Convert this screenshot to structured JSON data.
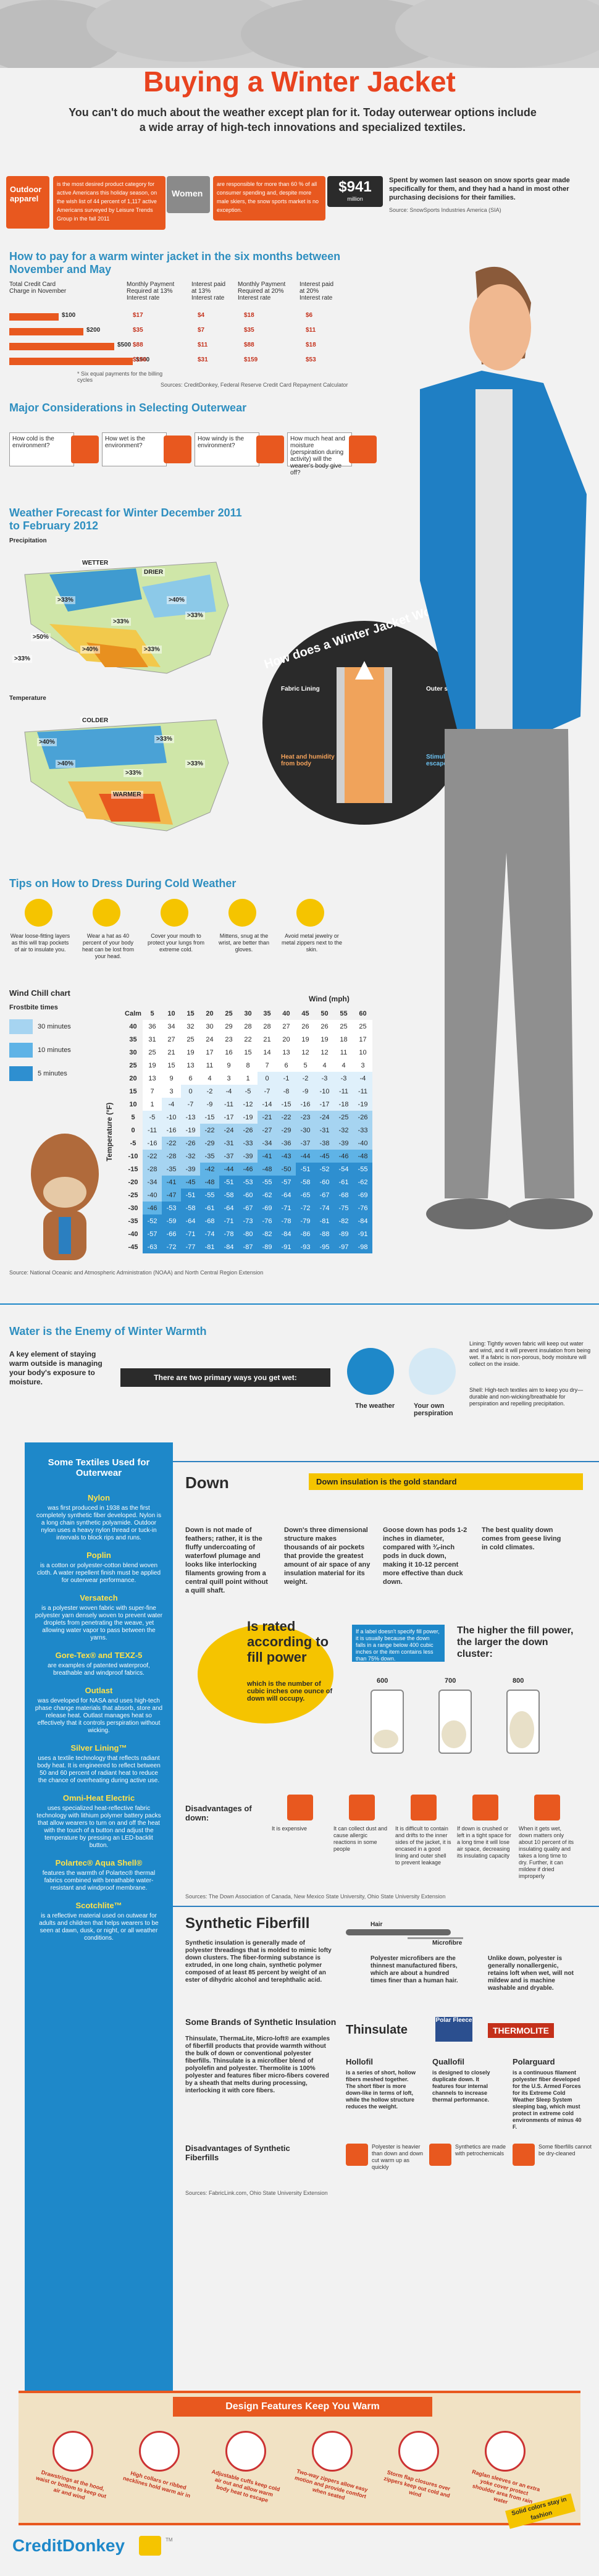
{
  "header": {
    "title": "Buying a Winter Jacket",
    "intro": "You can't do much about the weather except plan for it. Today outerwear options include a wide array of high-tech innovations and specialized textiles."
  },
  "stats": {
    "outdoor_label": "Outdoor apparel",
    "outdoor_text": "is the most desired product category for active Americans this holiday season, on the wish list of 44 percent of 1,117 active Americans surveyed by Leisure Trends Group in the fall 2011",
    "women_label": "Women",
    "women_text": "are responsible for more than 60 % of all consumer spending and, despite more male skiers, the snow sports market is no exception.",
    "spent_value": "$941",
    "spent_unit": "million",
    "spent_text": "Spent by women last season on snow sports gear made specifically for them, and they had a hand in most other purchasing decisions for their families.",
    "spent_source": "Source: SnowSports Industries America (SIA)"
  },
  "payment": {
    "title": "How to pay for a warm winter jacket in the six months between November and May",
    "col1": "Total Credit Card Charge in November",
    "col2": "Monthly Payment Required at 13% Interest rate",
    "col3": "Interest paid at 13% Interest rate",
    "col4": "Monthly Payment Required at 20% Interest rate",
    "col5": "Interest paid at 20% Interest rate",
    "rows": [
      {
        "charge": "$100",
        "p13": "$17",
        "i13": "$4",
        "p20": "$18",
        "i20": "$6"
      },
      {
        "charge": "$200",
        "p13": "$35",
        "i13": "$7",
        "p20": "$35",
        "i20": "$11"
      },
      {
        "charge": "$500",
        "p13": "$88",
        "i13": "$11",
        "p20": "$88",
        "i20": "$18"
      },
      {
        "charge": "$900",
        "p13": "$156",
        "i13": "$31",
        "p20": "$159",
        "i20": "$53"
      }
    ],
    "note": "* Six equal payments for the billing cycles",
    "source": "Sources: CreditDonkey, Federal Reserve Credit Card Repayment Calculator"
  },
  "considerations": {
    "title": "Major Considerations in Selecting Outerwear",
    "items": [
      "How cold is the environment?",
      "How wet is the environment?",
      "How windy is the environment?",
      "How much heat and moisture (perspiration during activity) will the wearer's body give off?"
    ]
  },
  "forecast": {
    "title": "Weather Forecast for Winter December 2011 to February 2012",
    "precip_label": "Precipitation",
    "precip_tags": [
      "WETTER",
      "DRIER",
      ">40%",
      ">33%",
      ">33%",
      ">33%",
      ">40%",
      ">50%",
      ">33%",
      ">33%"
    ],
    "temp_label": "Temperature",
    "temp_tags": [
      "COLDER",
      "WARMER",
      ">33%",
      ">40%",
      ">33%",
      ">33%",
      ">40%"
    ]
  },
  "how_works": {
    "title": "How does a Winter Jacket Work?",
    "fabric": "Fabric Lining",
    "fill": "Fill",
    "outer": "Outer shell",
    "heat": "Heat and humidity from body",
    "vapor": "Stimulate vapor escapes"
  },
  "tips": {
    "title": "Tips on How to Dress During Cold Weather",
    "items": [
      "Wear loose-fitting layers as this will trap pockets of air to insulate you.",
      "Wear a hat as 40 percent of your body heat can be lost from your head.",
      "Cover your mouth to protect your lungs from extreme cold.",
      "Mittens, snug at the wrist, are better than gloves.",
      "Avoid metal jewelry or metal zippers next to the skin."
    ]
  },
  "wind_chill": {
    "title": "Wind Chill chart",
    "frostbite_label": "Frostbite times",
    "legend": [
      "30 minutes",
      "10 minutes",
      "5 minutes"
    ],
    "wind_label": "Wind (mph)",
    "temp_label": "Temperature (°F)",
    "header": [
      "Calm",
      "5",
      "10",
      "15",
      "20",
      "25",
      "30",
      "35",
      "40",
      "45",
      "50",
      "55",
      "60"
    ],
    "rows": [
      [
        "40",
        "36",
        "34",
        "32",
        "30",
        "29",
        "28",
        "28",
        "27",
        "26",
        "26",
        "25",
        "25"
      ],
      [
        "35",
        "31",
        "27",
        "25",
        "24",
        "23",
        "22",
        "21",
        "20",
        "19",
        "19",
        "18",
        "17"
      ],
      [
        "30",
        "25",
        "21",
        "19",
        "17",
        "16",
        "15",
        "14",
        "13",
        "12",
        "12",
        "11",
        "10"
      ],
      [
        "25",
        "19",
        "15",
        "13",
        "11",
        "9",
        "8",
        "7",
        "6",
        "5",
        "4",
        "4",
        "3"
      ],
      [
        "20",
        "13",
        "9",
        "6",
        "4",
        "3",
        "1",
        "0",
        "-1",
        "-2",
        "-3",
        "-3",
        "-4"
      ],
      [
        "15",
        "7",
        "3",
        "0",
        "-2",
        "-4",
        "-5",
        "-7",
        "-8",
        "-9",
        "-10",
        "-11",
        "-11"
      ],
      [
        "10",
        "1",
        "-4",
        "-7",
        "-9",
        "-11",
        "-12",
        "-14",
        "-15",
        "-16",
        "-17",
        "-18",
        "-19"
      ],
      [
        "5",
        "-5",
        "-10",
        "-13",
        "-15",
        "-17",
        "-19",
        "-21",
        "-22",
        "-23",
        "-24",
        "-25",
        "-26"
      ],
      [
        "0",
        "-11",
        "-16",
        "-19",
        "-22",
        "-24",
        "-26",
        "-27",
        "-29",
        "-30",
        "-31",
        "-32",
        "-33"
      ],
      [
        "-5",
        "-16",
        "-22",
        "-26",
        "-29",
        "-31",
        "-33",
        "-34",
        "-36",
        "-37",
        "-38",
        "-39",
        "-40"
      ],
      [
        "-10",
        "-22",
        "-28",
        "-32",
        "-35",
        "-37",
        "-39",
        "-41",
        "-43",
        "-44",
        "-45",
        "-46",
        "-48"
      ],
      [
        "-15",
        "-28",
        "-35",
        "-39",
        "-42",
        "-44",
        "-46",
        "-48",
        "-50",
        "-51",
        "-52",
        "-54",
        "-55"
      ],
      [
        "-20",
        "-34",
        "-41",
        "-45",
        "-48",
        "-51",
        "-53",
        "-55",
        "-57",
        "-58",
        "-60",
        "-61",
        "-62"
      ],
      [
        "-25",
        "-40",
        "-47",
        "-51",
        "-55",
        "-58",
        "-60",
        "-62",
        "-64",
        "-65",
        "-67",
        "-68",
        "-69"
      ],
      [
        "-30",
        "-46",
        "-53",
        "-58",
        "-61",
        "-64",
        "-67",
        "-69",
        "-71",
        "-72",
        "-74",
        "-75",
        "-76"
      ],
      [
        "-35",
        "-52",
        "-59",
        "-64",
        "-68",
        "-71",
        "-73",
        "-76",
        "-78",
        "-79",
        "-81",
        "-82",
        "-84"
      ],
      [
        "-40",
        "-57",
        "-66",
        "-71",
        "-74",
        "-78",
        "-80",
        "-82",
        "-84",
        "-86",
        "-88",
        "-89",
        "-91"
      ],
      [
        "-45",
        "-63",
        "-72",
        "-77",
        "-81",
        "-84",
        "-87",
        "-89",
        "-91",
        "-93",
        "-95",
        "-97",
        "-98"
      ]
    ],
    "source": "Source: National Oceanic and Atmospheric Administration (NOAA) and North Central Region Extension"
  },
  "water": {
    "title": "Water is the Enemy of Winter Warmth",
    "key": "A key element of staying warm outside is managing your body's exposure to moisture.",
    "ways": "There are two primary ways you get wet:",
    "way1": "The weather",
    "way2": "Your own perspiration",
    "lining": "Lining: Tightly woven fabric will keep out water and wind, and it will prevent insulation from being wet. If a fabric is non-porous, body moisture will collect on the inside.",
    "shell": "Shell: High-tech textiles aim to keep you dry—durable and non-wicking/breathable for perspiration and repelling precipitation."
  },
  "textiles": {
    "title": "Some Textiles Used for Outerwear",
    "items": [
      {
        "name": "Nylon",
        "text": "was first produced in 1938 as the first completely synthetic fiber developed. Nylon is a long chain synthetic polyamide. Outdoor nylon uses a heavy nylon thread or tuck-in intervals to block rips and runs."
      },
      {
        "name": "Poplin",
        "text": "is a cotton or polyester-cotton blend woven cloth. A water repellent finish must be applied for outerwear performance."
      },
      {
        "name": "Versatech",
        "text": "is a polyester woven fabric with super-fine polyester yarn densely woven to prevent water droplets from penetrating the weave, yet allowing water vapor to pass between the yarns."
      },
      {
        "name": "Gore-Tex® and TEXZ-5",
        "text": "are examples of patented waterproof, breathable and windproof fabrics."
      },
      {
        "name": "Outlast",
        "text": "was developed for NASA and uses high-tech phase change materials that absorb, store and release heat. Outlast manages heat so effectively that it controls perspiration without wicking."
      },
      {
        "name": "Silver Lining™",
        "text": "uses a textile technology that reflects radiant body heat. It is engineered to reflect between 50 and 60 percent of radiant heat to reduce the chance of overheating during active use."
      },
      {
        "name": "Omni-Heat Electric",
        "text": "uses specialized heat-reflective fabric technology with lithium polymer battery packs that allow wearers to turn on and off the heat with the touch of a button and adjust the temperature by pressing an LED-backlit button."
      },
      {
        "name": "Polartec® Aqua Shell®",
        "text": "features the warmth of Polartec® thermal fabrics combined with breathable water-resistant and windproof membrane."
      },
      {
        "name": "Scotchlite™",
        "text": "is a reflective material used on outwear for adults and children that helps wearers to be seen at dawn, dusk, or night, or all weather conditions."
      }
    ]
  },
  "down": {
    "title": "Down",
    "standard": "Down insulation is the gold standard",
    "col1": "Down is not made of feathers; rather, it is the fluffy undercoating of waterfowl plumage and looks like interlocking filaments growing from a central quill point without a quill shaft.",
    "col2": "Down's three dimensional structure makes thousands of air pockets that provide the greatest amount of air space of any insulation material for its weight.",
    "col3": "Goose down has pods 1-2 inches in diameter, compared with ¾-inch pods in duck down, making it 10-12 percent more effective than duck down.",
    "col4": "The best quality down comes from geese living in cold climates.",
    "rated_head": "Is rated according to fill power",
    "rated_text": "which is the number of cubic inches one ounce of down will occupy.",
    "example": "If a label doesn't specify fill power, it is usually because the down falls in a range below 400 cubic inches or the item contains less than 75% down.",
    "higher": "The higher the fill power, the larger the down cluster:",
    "cylinders": [
      "600",
      "700",
      "800"
    ],
    "disadv_title": "Disadvantages of down:",
    "disadv": [
      "It is expensive",
      "It can collect dust and cause allergic reactions in some people",
      "It is difficult to contain and drifts to the inner sides of the jacket, it is encased in a good lining and outer shell to prevent leakage",
      "If down is crushed or left in a tight space for a long time it will lose air space, decreasing its insulating capacity",
      "When it gets wet, down matters only about 10 percent of its insulating quality and takes a long time to dry. Further, it can mildew if dried improperly"
    ],
    "source": "Sources: The Down Association of Canada, New Mexico State University, Ohio State University Extension"
  },
  "synthetic": {
    "title": "Synthetic Fiberfill",
    "intro": "Synthetic insulation is generally made of polyester threadings that is molded to mimic lofty down clusters. The fiber-forming substance is extruded, in one long chain, synthetic polymer composed of at least 85 percent by weight of an ester of dihydric alcohol and terephthalic acid.",
    "hair_label": "Hair",
    "micro_label": "Microfibre",
    "micro_text": "Polyester microfibers are the thinnest manufactured fibers, which are about a hundred times finer than a human hair.",
    "washing": "Unlike down, polyester is generally nonallergenic, retains loft when wet, will not mildew and is machine washable and dryable.",
    "brands_title": "Some Brands of Synthetic Insulation",
    "brands_text": "Thinsulate, ThermaLite, Micro-loft® are examples of fiberfill products that provide warmth without the bulk of down or conventional polyester fiberfills. Thinsulate is a microfiber blend of polyolefin and polyester. Thermolite is 100% polyester and features fiber micro-fibers covered by a sheath that melts during processing, interlocking it with core fibers.",
    "brand_logos": [
      "Thinsulate",
      "Polar Fleece",
      "THERMOLITE"
    ],
    "hollofil_title": "Hollofil",
    "hollofil": "is a series of short, hollow fibers meshed together. The short fiber is more down-like in terms of loft, while the hollow structure reduces the weight.",
    "quallofil_title": "Quallofil",
    "quallofil": "is designed to closely duplicate down. It features four internal channels to increase thermal performance.",
    "polarguard_title": "Polarguard",
    "polarguard": "is a continuous filament polyester fiber developed for the U.S. Armed Forces for its Extreme Cold Weather Sleep System sleeping bag, which must protect in extreme cold environments of minus 40 F.",
    "disadv_title": "Disadvantages of Synthetic Fiberfills",
    "disadv": [
      "Polyester is heavier than down and down cut warm up as quickly",
      "Synthetics are made with petrochemicals",
      "Some fiberfills cannot be dry-cleaned"
    ],
    "source": "Sources: FabricLink.com, Ohio State University Extension"
  },
  "design": {
    "title": "Design Features Keep You Warm",
    "items": [
      "Drawstrings at the hood, waist or bottom to keep out air and wind",
      "High collars or ribbed necklines hold warm air in",
      "Adjustable cuffs keep cold air out and allow warm body heat to escape",
      "Two-way zippers allow easy motion and provide comfort when seated",
      "Storm flap closures over zippers keep out cold and wind",
      "Raglan sleeves or an extra yoke cover protect shoulder area from rain water"
    ],
    "note": "Solid colors stay in fashion"
  },
  "footer": {
    "brand": "CreditDonkey",
    "tm": "TM"
  }
}
